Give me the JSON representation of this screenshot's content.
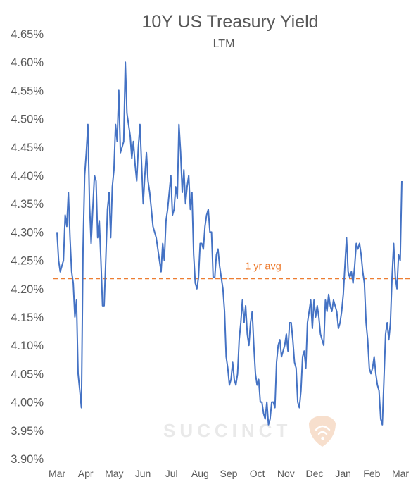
{
  "chart_data": {
    "type": "line",
    "title": "10Y US Treasury Yield",
    "subtitle": "LTM",
    "xlabel": "",
    "ylabel": "",
    "ylim": [
      3.9,
      4.65
    ],
    "ytick_values": [
      3.9,
      3.95,
      4.0,
      4.05,
      4.1,
      4.15,
      4.2,
      4.25,
      4.3,
      4.35,
      4.4,
      4.45,
      4.5,
      4.55,
      4.6,
      4.65
    ],
    "ytick_labels": [
      "3.90%",
      "3.95%",
      "4.00%",
      "4.05%",
      "4.10%",
      "4.15%",
      "4.20%",
      "4.25%",
      "4.30%",
      "4.35%",
      "4.40%",
      "4.45%",
      "4.50%",
      "4.55%",
      "4.60%",
      "4.65%"
    ],
    "x_month_labels": [
      "Mar",
      "Apr",
      "May",
      "Jun",
      "Jul",
      "Aug",
      "Sep",
      "Oct",
      "Nov",
      "Dec",
      "Jan",
      "Feb",
      "Mar"
    ],
    "grid": false,
    "legend": "none",
    "series": [
      {
        "color": "#4472c4",
        "values": [
          4.3,
          4.25,
          4.23,
          4.24,
          4.25,
          4.33,
          4.31,
          4.37,
          4.29,
          4.23,
          4.21,
          4.15,
          4.18,
          4.05,
          4.02,
          3.99,
          4.27,
          4.4,
          4.44,
          4.49,
          4.35,
          4.28,
          4.34,
          4.4,
          4.39,
          4.29,
          4.32,
          4.25,
          4.17,
          4.17,
          4.25,
          4.34,
          4.37,
          4.29,
          4.38,
          4.41,
          4.49,
          4.46,
          4.55,
          4.44,
          4.45,
          4.46,
          4.6,
          4.51,
          4.49,
          4.47,
          4.43,
          4.46,
          4.42,
          4.39,
          4.45,
          4.49,
          4.42,
          4.35,
          4.4,
          4.44,
          4.39,
          4.37,
          4.34,
          4.31,
          4.3,
          4.29,
          4.27,
          4.25,
          4.23,
          4.28,
          4.25,
          4.32,
          4.34,
          4.37,
          4.4,
          4.33,
          4.34,
          4.38,
          4.36,
          4.49,
          4.44,
          4.37,
          4.41,
          4.35,
          4.38,
          4.4,
          4.34,
          4.37,
          4.26,
          4.21,
          4.2,
          4.22,
          4.28,
          4.28,
          4.27,
          4.31,
          4.33,
          4.34,
          4.3,
          4.3,
          4.22,
          4.22,
          4.26,
          4.27,
          4.24,
          4.22,
          4.2,
          4.16,
          4.08,
          4.06,
          4.03,
          4.04,
          4.07,
          4.04,
          4.03,
          4.05,
          4.11,
          4.14,
          4.18,
          4.14,
          4.17,
          4.12,
          4.1,
          4.14,
          4.16,
          4.1,
          4.05,
          4.03,
          4.04,
          4.0,
          4.0,
          3.98,
          3.97,
          4.0,
          3.96,
          3.97,
          4.0,
          4.0,
          3.99,
          4.07,
          4.1,
          4.11,
          4.08,
          4.09,
          4.1,
          4.12,
          4.09,
          4.14,
          4.14,
          4.11,
          4.07,
          4.06,
          4.0,
          3.99,
          4.02,
          4.08,
          4.09,
          4.06,
          4.14,
          4.16,
          4.18,
          4.13,
          4.18,
          4.15,
          4.17,
          4.15,
          4.12,
          4.11,
          4.1,
          4.18,
          4.16,
          4.19,
          4.17,
          4.16,
          4.18,
          4.17,
          4.16,
          4.13,
          4.14,
          4.16,
          4.19,
          4.24,
          4.29,
          4.23,
          4.22,
          4.23,
          4.21,
          4.24,
          4.28,
          4.27,
          4.28,
          4.26,
          4.23,
          4.21,
          4.14,
          4.11,
          4.06,
          4.05,
          4.06,
          4.08,
          4.05,
          4.03,
          4.02,
          3.97,
          3.96,
          4.04,
          4.12,
          4.14,
          4.11,
          4.14,
          4.22,
          4.28,
          4.22,
          4.2,
          4.26,
          4.25,
          4.39
        ]
      }
    ],
    "average": {
      "value": 4.218,
      "label": "1 yr avg",
      "color": "#ed7d31",
      "style": "dashed"
    }
  },
  "watermark": {
    "text": "SUCCINCT",
    "icon": "shield-logo-icon"
  }
}
